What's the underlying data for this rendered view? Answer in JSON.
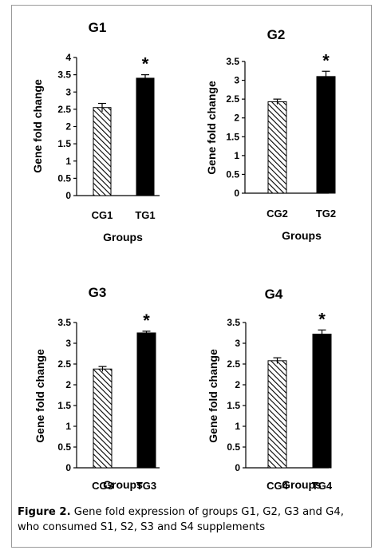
{
  "chart_data": [
    {
      "type": "bar",
      "title": "G1",
      "categories": [
        "CG1",
        "TG1"
      ],
      "values": [
        2.55,
        3.4
      ],
      "error": [
        0.12,
        0.1
      ],
      "patterns": [
        "hatched",
        "solid"
      ],
      "annotations": [
        "",
        "*"
      ],
      "xlabel": "Groups",
      "ylabel": "Gene fold change",
      "ylim": [
        0,
        4
      ],
      "yticks": [
        "0",
        "0.5",
        "1",
        "1.5",
        "2",
        "2.5",
        "3",
        "3.5",
        "4"
      ]
    },
    {
      "type": "bar",
      "title": "G2",
      "categories": [
        "CG2",
        "TG2"
      ],
      "values": [
        2.43,
        3.1
      ],
      "error": [
        0.07,
        0.14
      ],
      "patterns": [
        "hatched",
        "solid"
      ],
      "annotations": [
        "",
        "*"
      ],
      "xlabel": "Groups",
      "ylabel": "Gene fold change",
      "ylim": [
        0,
        3.5
      ],
      "yticks": [
        "0",
        "0.5",
        "1",
        "1.5",
        "2",
        "2.5",
        "3",
        "3.5"
      ]
    },
    {
      "type": "bar",
      "title": "G3",
      "categories": [
        "CG3",
        "TG3"
      ],
      "values": [
        2.38,
        3.25
      ],
      "error": [
        0.06,
        0.04
      ],
      "patterns": [
        "hatched",
        "solid"
      ],
      "annotations": [
        "",
        "*"
      ],
      "xlabel": "Groups",
      "ylabel": "Gene fold change",
      "ylim": [
        0,
        3.5
      ],
      "yticks": [
        "0",
        "0.5",
        "1",
        "1.5",
        "2",
        "2.5",
        "3",
        "3.5"
      ]
    },
    {
      "type": "bar",
      "title": "G4",
      "categories": [
        "CG4",
        "TG4"
      ],
      "values": [
        2.58,
        3.22
      ],
      "error": [
        0.07,
        0.1
      ],
      "patterns": [
        "hatched",
        "solid"
      ],
      "annotations": [
        "",
        "*"
      ],
      "xlabel": "Groups",
      "ylabel": "Gene fold change",
      "ylim": [
        0,
        3.5
      ],
      "yticks": [
        "0",
        "0.5",
        "1",
        "1.5",
        "2",
        "2.5",
        "3",
        "3.5"
      ]
    }
  ],
  "caption": {
    "label": "Figure 2.",
    "text": " Gene fold expression of groups G1, G2, G3 and G4, who consumed S1, S2, S3 and S4 supplements"
  },
  "colors": {
    "bar_fill": "#000000",
    "frame": "#9a9a9a"
  }
}
